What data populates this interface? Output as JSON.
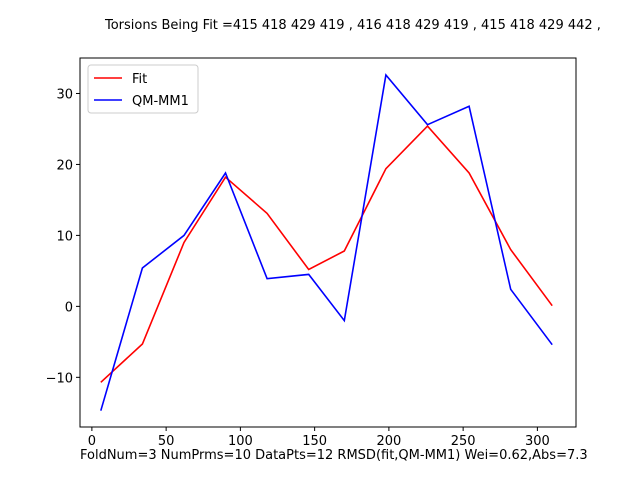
{
  "chart_data": {
    "type": "line",
    "title": "Torsions Being Fit =415 418 429 419 , 416 418 429 419 , 415 418 429 442 ,",
    "footer": "FoldNum=3 NumPrms=10 DataPts=12 RMSD(fit,QM-MM1) Wei=0.62,Abs=7.3",
    "xlim": [
      -8,
      326
    ],
    "ylim": [
      -17,
      35
    ],
    "xticks": [
      0,
      50,
      100,
      150,
      200,
      250,
      300
    ],
    "yticks": [
      -10,
      0,
      10,
      20,
      30
    ],
    "xtick_labels": [
      "0",
      "50",
      "100",
      "150",
      "200",
      "250",
      "300"
    ],
    "ytick_labels": [
      "−10",
      "0",
      "10",
      "20",
      "30"
    ],
    "grid": false,
    "legend_position": "upper-left",
    "series": [
      {
        "name": "Fit",
        "color": "#ff0000",
        "x": [
          6,
          34,
          62,
          90,
          118,
          146,
          170,
          198,
          226,
          254,
          282,
          310
        ],
        "y": [
          -10.7,
          -5.3,
          9.0,
          18.2,
          13.1,
          5.2,
          7.8,
          19.4,
          25.4,
          18.8,
          8.0,
          0.1
        ]
      },
      {
        "name": "QM-MM1",
        "color": "#0000ff",
        "x": [
          6,
          34,
          62,
          90,
          118,
          146,
          170,
          198,
          226,
          254,
          282,
          310
        ],
        "y": [
          -14.7,
          5.4,
          10.0,
          18.8,
          3.9,
          4.5,
          -2.0,
          32.6,
          25.6,
          28.2,
          2.4,
          -5.4
        ]
      }
    ]
  }
}
